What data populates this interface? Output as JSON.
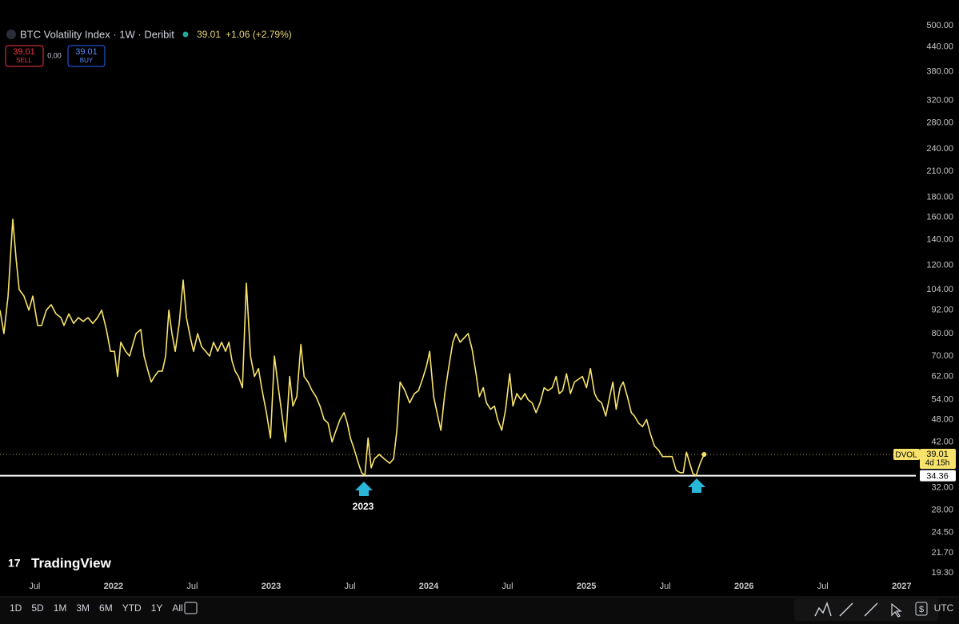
{
  "chart_data": {
    "type": "line",
    "title": "BTC Volatility Index · 1W · Deribit",
    "change": "+1.06 (+2.79%)",
    "sell": {
      "label": "SELL"
    },
    "spread": "0.00",
    "buy": {
      "label": "BUY"
    },
    "countdown": "4d 15h",
    "brand": "TradingView",
    "annotations": [
      "2023"
    ],
    "log_scale": true,
    "grid": false,
    "support_line": {
      "value": 34.36,
      "color": "#ffffff"
    },
    "xlim": [
      2021.28,
      2027.09
    ],
    "ylim": [
      16.8,
      582
    ],
    "xticks": [
      {
        "value": 2021.5,
        "label": "Jul"
      },
      2022,
      {
        "value": 2022.5,
        "label": "Jul"
      },
      2023,
      {
        "value": 2023.5,
        "label": "Jul"
      },
      2024,
      {
        "value": 2024.5,
        "label": "Jul"
      },
      2025,
      {
        "value": 2025.5,
        "label": "Jul"
      },
      2026,
      {
        "value": 2026.5,
        "label": "Jul"
      },
      2027
    ],
    "yticks": [
      {
        "value": 500,
        "label": "500.00"
      },
      {
        "value": 440,
        "label": "440.00"
      },
      {
        "value": 380,
        "label": "380.00"
      },
      {
        "value": 320,
        "label": "320.00"
      },
      {
        "value": 280,
        "label": "280.00"
      },
      {
        "value": 240,
        "label": "240.00"
      },
      {
        "value": 210,
        "label": "210.00"
      },
      {
        "value": 180,
        "label": "180.00"
      },
      {
        "value": 160,
        "label": "160.00"
      },
      {
        "value": 140,
        "label": "140.00"
      },
      {
        "value": 120,
        "label": "120.00"
      },
      {
        "value": 104,
        "label": "104.00"
      },
      {
        "value": 92,
        "label": "92.00"
      },
      {
        "value": 80,
        "label": "80.00"
      },
      {
        "value": 70,
        "label": "70.00"
      },
      {
        "value": 62,
        "label": "62.00"
      },
      {
        "value": 54,
        "label": "54.00"
      },
      {
        "value": 48,
        "label": "48.00"
      },
      {
        "value": 42,
        "label": "42.00"
      },
      {
        "value": 32,
        "label": "32.00"
      },
      {
        "value": 28,
        "label": "28.00"
      },
      {
        "value": 24.5,
        "label": "24.50"
      },
      {
        "value": 21.7,
        "label": "21.70"
      },
      {
        "value": 19.3,
        "label": "19.30"
      }
    ],
    "series": [
      {
        "name": "DVOL",
        "color": "#f7e36b",
        "x": [
          2021.28,
          2021.305,
          2021.331,
          2021.361,
          2021.382,
          2021.402,
          2021.432,
          2021.463,
          2021.488,
          2021.519,
          2021.544,
          2021.574,
          2021.605,
          2021.635,
          2021.666,
          2021.686,
          2021.717,
          2021.747,
          2021.777,
          2021.808,
          2021.838,
          2021.869,
          2021.899,
          2021.925,
          2021.955,
          2021.981,
          2022.006,
          2022.026,
          2022.046,
          2022.077,
          2022.102,
          2022.123,
          2022.143,
          2022.173,
          2022.194,
          2022.219,
          2022.239,
          2022.26,
          2022.285,
          2022.31,
          2022.331,
          2022.351,
          2022.371,
          2022.392,
          2022.417,
          2022.442,
          2022.463,
          2022.488,
          2022.508,
          2022.534,
          2022.559,
          2022.585,
          2022.61,
          2022.635,
          2022.661,
          2022.686,
          2022.711,
          2022.732,
          2022.752,
          2022.772,
          2022.793,
          2022.818,
          2022.843,
          2022.869,
          2022.894,
          2022.92,
          2022.94,
          2022.97,
          2022.996,
          2023.021,
          2023.046,
          2023.067,
          2023.092,
          2023.118,
          2023.138,
          2023.163,
          2023.189,
          2023.209,
          2023.234,
          2023.26,
          2023.285,
          2023.31,
          2023.336,
          2023.361,
          2023.387,
          2023.412,
          2023.437,
          2023.463,
          2023.483,
          2023.503,
          2023.529,
          2023.554,
          2023.574,
          2023.595,
          2023.615,
          2023.635,
          2023.656,
          2023.686,
          2023.717,
          2023.752,
          2023.777,
          2023.798,
          2023.818,
          2023.849,
          2023.879,
          2023.909,
          2023.935,
          2023.96,
          2023.986,
          2024.006,
          2024.031,
          2024.057,
          2024.077,
          2024.102,
          2024.128,
          2024.153,
          2024.173,
          2024.199,
          2024.224,
          2024.25,
          2024.275,
          2024.3,
          2024.321,
          2024.346,
          2024.366,
          2024.392,
          2024.417,
          2024.437,
          2024.463,
          2024.488,
          2024.514,
          2024.534,
          2024.559,
          2024.585,
          2024.61,
          2024.63,
          2024.656,
          2024.681,
          2024.706,
          2024.732,
          2024.757,
          2024.783,
          2024.808,
          2024.828,
          2024.849,
          2024.874,
          2024.899,
          2024.925,
          2024.95,
          2024.975,
          2025.001,
          2025.026,
          2025.052,
          2025.072,
          2025.097,
          2025.123,
          2025.148,
          2025.168,
          2025.189,
          2025.214,
          2025.234,
          2025.26,
          2025.285,
          2025.305,
          2025.331,
          2025.356,
          2025.382,
          2025.407,
          2025.432,
          2025.458,
          2025.483,
          2025.519,
          2025.544,
          2025.569,
          2025.595,
          2025.615,
          2025.635,
          2025.656,
          2025.676,
          2025.696,
          2025.722,
          2025.747
        ],
        "values": [
          92,
          80,
          100,
          158,
          125,
          104,
          100,
          92,
          100,
          84,
          84,
          92,
          95,
          90,
          88,
          84,
          90,
          85,
          88,
          86,
          88,
          85,
          88,
          92,
          82,
          72,
          72,
          62,
          76,
          72,
          70,
          75,
          80,
          82,
          70,
          64,
          60,
          62,
          64,
          64,
          70,
          92,
          80,
          72,
          85,
          110,
          88,
          78,
          72,
          80,
          74,
          72,
          70,
          76,
          72,
          76,
          72,
          76,
          68,
          64,
          62,
          58,
          108,
          70,
          62,
          65,
          58,
          50,
          43,
          70,
          58,
          50,
          42,
          62,
          52,
          55,
          75,
          62,
          60,
          57,
          55,
          52,
          48,
          47,
          42,
          45,
          48,
          50,
          47,
          43,
          40,
          37,
          35,
          34.4,
          43,
          36,
          38,
          39,
          38,
          37,
          38,
          45,
          60,
          57,
          53,
          56,
          57,
          61,
          66,
          72,
          55,
          49,
          45,
          56,
          66,
          76,
          80,
          76,
          78,
          80,
          73,
          63,
          55,
          58,
          53,
          51,
          52,
          48,
          45,
          51,
          63,
          52,
          56,
          54,
          56,
          54,
          53,
          50,
          53,
          58,
          57,
          58,
          62,
          56,
          57,
          63,
          56,
          60,
          61,
          62,
          58,
          65,
          56,
          54,
          53,
          49,
          55,
          60,
          51,
          58,
          60,
          55,
          50,
          49,
          47,
          46,
          48,
          44,
          41,
          40,
          38.5,
          38.5,
          38.5,
          35.5,
          35,
          35,
          39.5,
          37,
          34.8,
          34.4,
          37,
          39.01
        ]
      }
    ]
  },
  "toolbar": {
    "ranges": [
      "1D",
      "5D",
      "1M",
      "3M",
      "6M",
      "YTD",
      "1Y",
      "All"
    ],
    "timezone": "UTC"
  }
}
